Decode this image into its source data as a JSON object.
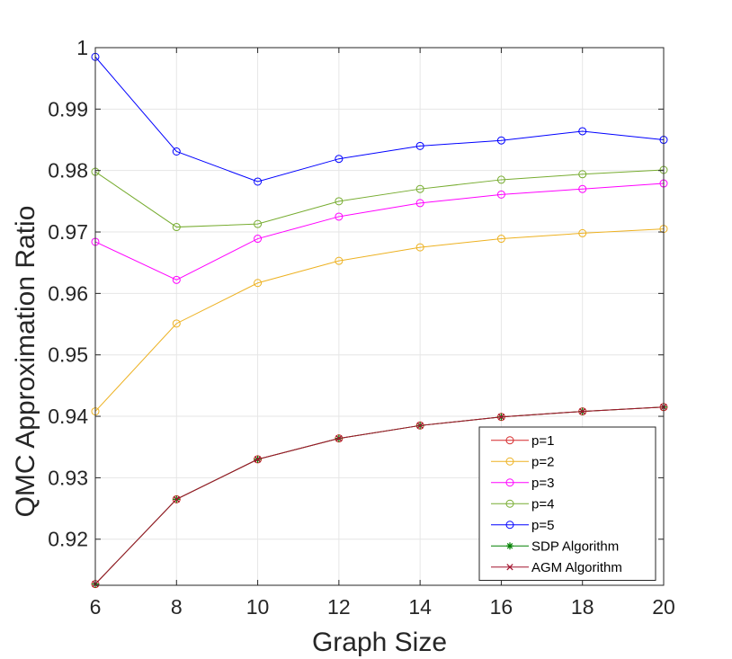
{
  "chart_data": {
    "type": "line",
    "title": "",
    "xlabel": "Graph Size",
    "ylabel": "QMC Approximation Ratio",
    "xlim": [
      6,
      20
    ],
    "ylim": [
      0.9125,
      1.0
    ],
    "grid": true,
    "legend_position": "bottom-right",
    "x": [
      6,
      8,
      10,
      12,
      14,
      16,
      18,
      20
    ],
    "x_ticks": [
      "6",
      "8",
      "10",
      "12",
      "14",
      "16",
      "18",
      "20"
    ],
    "y_tick_values": [
      0.92,
      0.93,
      0.94,
      0.95,
      0.96,
      0.97,
      0.98,
      0.99,
      1.0
    ],
    "y_ticks": [
      "0.92",
      "0.93",
      "0.94",
      "0.95",
      "0.96",
      "0.97",
      "0.98",
      "0.99",
      "1"
    ],
    "series": [
      {
        "name": "p=1",
        "color": "#d62728",
        "marker": "circle",
        "values": [
          0.9127,
          0.9265,
          0.933,
          0.9364,
          0.9385,
          0.9399,
          0.9408,
          0.9415
        ]
      },
      {
        "name": "p=2",
        "color": "#edb120",
        "marker": "circle",
        "values": [
          0.9408,
          0.9551,
          0.9617,
          0.9653,
          0.9675,
          0.9689,
          0.9698,
          0.9705
        ]
      },
      {
        "name": "p=3",
        "color": "#ff00ff",
        "marker": "circle",
        "values": [
          0.9684,
          0.9622,
          0.9689,
          0.9725,
          0.9747,
          0.9761,
          0.977,
          0.9779
        ]
      },
      {
        "name": "p=4",
        "color": "#77ac30",
        "marker": "circle",
        "values": [
          0.9798,
          0.9708,
          0.9713,
          0.975,
          0.977,
          0.9785,
          0.9794,
          0.9801
        ]
      },
      {
        "name": "p=5",
        "color": "#0000ff",
        "marker": "circle",
        "values": [
          0.9985,
          0.9831,
          0.9782,
          0.9819,
          0.984,
          0.9849,
          0.9864,
          0.985
        ]
      },
      {
        "name": "SDP Algorithm",
        "color": "#008000",
        "marker": "asterisk",
        "values": [
          0.9127,
          0.9265,
          0.933,
          0.9364,
          0.9385,
          0.9399,
          0.9408,
          0.9415
        ]
      },
      {
        "name": "AGM Algorithm",
        "color": "#a2142f",
        "marker": "x",
        "values": [
          0.9127,
          0.9265,
          0.933,
          0.9364,
          0.9385,
          0.9399,
          0.9408,
          0.9415
        ]
      }
    ]
  }
}
